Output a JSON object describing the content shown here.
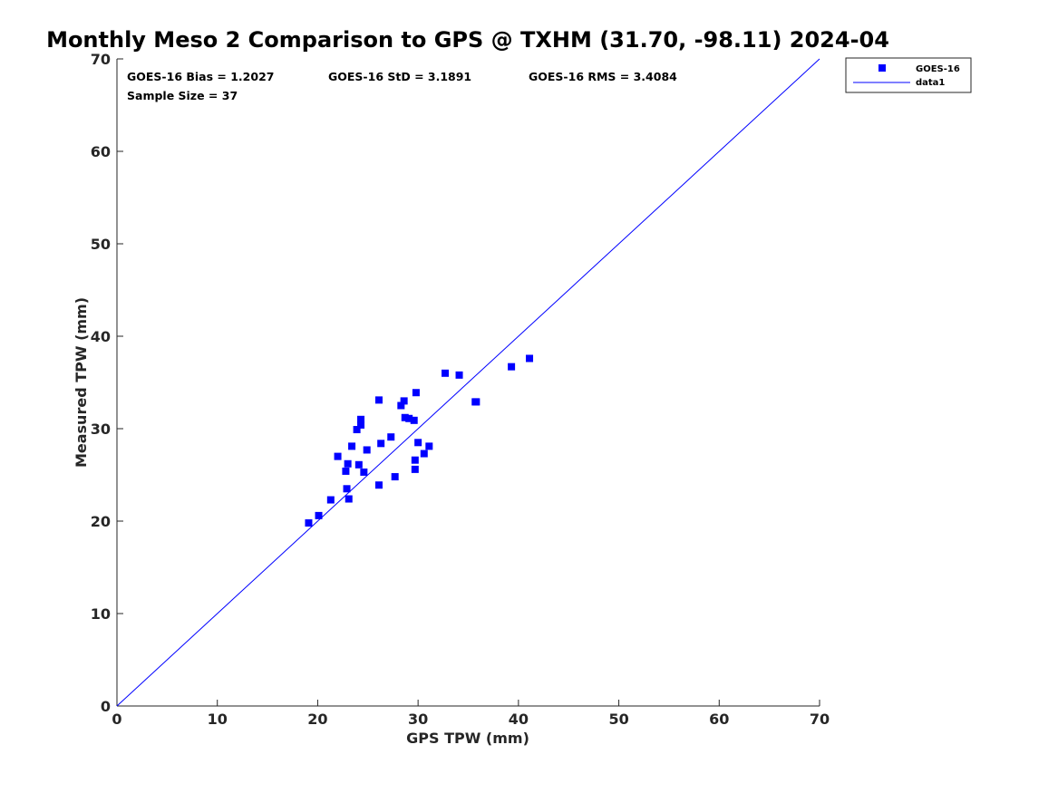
{
  "chart_data": {
    "type": "scatter",
    "title": "Monthly Meso 2 Comparison to GPS @ TXHM (31.70, -98.11) 2024-04",
    "xlabel": "GPS TPW (mm)",
    "ylabel": "Measured TPW (mm)",
    "xlim": [
      0,
      70
    ],
    "ylim": [
      0,
      70
    ],
    "xticks": [
      "0",
      "10",
      "20",
      "30",
      "40",
      "50",
      "60",
      "70"
    ],
    "yticks": [
      "0",
      "10",
      "20",
      "30",
      "40",
      "50",
      "60",
      "70"
    ],
    "grid": false,
    "legend_position": "top-right",
    "annotations": {
      "bias": "GOES-16 Bias = 1.2027",
      "std": "GOES-16 StD = 3.1891",
      "rms": "GOES-16 RMS = 3.4084",
      "sample": "Sample Size = 37"
    },
    "series": [
      {
        "name": "GOES-16",
        "kind": "scatter",
        "marker": "square",
        "color": "#0000ff",
        "points": [
          [
            19.1,
            19.8
          ],
          [
            20.1,
            20.6
          ],
          [
            21.3,
            22.3
          ],
          [
            22.0,
            27.0
          ],
          [
            22.8,
            25.4
          ],
          [
            23.0,
            26.2
          ],
          [
            22.9,
            23.5
          ],
          [
            23.1,
            22.4
          ],
          [
            23.4,
            28.1
          ],
          [
            23.9,
            29.9
          ],
          [
            24.1,
            26.1
          ],
          [
            24.3,
            30.4
          ],
          [
            24.3,
            31.0
          ],
          [
            24.6,
            25.3
          ],
          [
            24.9,
            27.7
          ],
          [
            26.1,
            33.1
          ],
          [
            26.1,
            23.9
          ],
          [
            26.3,
            28.4
          ],
          [
            27.3,
            29.1
          ],
          [
            27.7,
            24.8
          ],
          [
            28.3,
            32.5
          ],
          [
            28.6,
            33.0
          ],
          [
            28.7,
            31.2
          ],
          [
            29.1,
            31.1
          ],
          [
            29.6,
            30.9
          ],
          [
            29.7,
            26.6
          ],
          [
            29.7,
            25.6
          ],
          [
            29.8,
            33.9
          ],
          [
            30.0,
            28.5
          ],
          [
            30.6,
            27.3
          ],
          [
            31.1,
            28.1
          ],
          [
            32.7,
            36.0
          ],
          [
            34.1,
            35.8
          ],
          [
            35.7,
            32.9
          ],
          [
            35.8,
            32.9
          ],
          [
            39.3,
            36.7
          ],
          [
            41.1,
            37.6
          ]
        ]
      },
      {
        "name": "data1",
        "kind": "line",
        "color": "#0000ff",
        "points": [
          [
            0,
            0
          ],
          [
            70,
            70
          ]
        ]
      }
    ]
  }
}
